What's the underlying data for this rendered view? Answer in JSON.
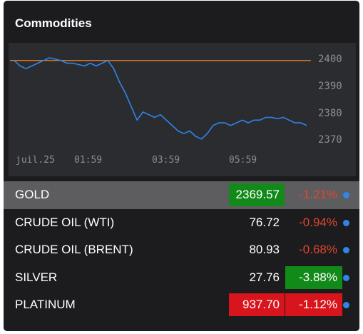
{
  "widget": {
    "title": "Commodities"
  },
  "chart_data": {
    "type": "line",
    "x_tick_labels": [
      "juil.25",
      "01:59",
      "03:59",
      "05:59"
    ],
    "y_tick_labels": [
      "2400",
      "2390",
      "2380",
      "2370"
    ],
    "ylim": [
      2365,
      2404
    ],
    "reference_line": 2398,
    "series": [
      {
        "x": [
          0,
          2,
          4,
          6,
          8,
          10,
          12,
          14,
          16,
          18,
          20,
          22,
          24,
          26,
          28,
          30,
          32,
          34,
          36,
          38,
          40,
          42,
          44,
          46,
          48,
          50,
          52,
          54,
          56,
          58,
          60,
          62,
          64,
          66,
          68,
          70,
          72,
          74,
          76,
          78,
          80,
          82,
          84,
          86,
          88,
          90,
          92,
          94,
          96,
          98,
          100
        ],
        "values": [
          2398,
          2396,
          2395,
          2396,
          2397,
          2398,
          2399,
          2398.5,
          2398,
          2397,
          2397,
          2396.5,
          2396,
          2397,
          2396,
          2397,
          2398,
          2395,
          2390,
          2386,
          2381,
          2376,
          2379,
          2378,
          2377,
          2378,
          2376,
          2374,
          2372,
          2371,
          2372,
          2370,
          2369,
          2371,
          2374,
          2375,
          2375,
          2374,
          2375,
          2376,
          2375,
          2376,
          2376,
          2377,
          2377,
          2376.5,
          2377,
          2376,
          2375,
          2375,
          2374
        ]
      }
    ],
    "colors": {
      "line": "#2f86e8",
      "reference": "#d0762c"
    }
  },
  "commodities": [
    {
      "name": "GOLD",
      "price": "2369.57",
      "change": "-1.21%",
      "price_style": "green",
      "change_style": "plain",
      "selected": true
    },
    {
      "name": "CRUDE OIL (WTI)",
      "price": "76.72",
      "change": "-0.94%",
      "price_style": "plain",
      "change_style": "plain",
      "selected": false
    },
    {
      "name": "CRUDE OIL (BRENT)",
      "price": "80.93",
      "change": "-0.68%",
      "price_style": "plain",
      "change_style": "plain",
      "selected": false
    },
    {
      "name": "SILVER",
      "price": "27.76",
      "change": "-3.88%",
      "price_style": "plain",
      "change_style": "green",
      "selected": false
    },
    {
      "name": "PLATINUM",
      "price": "937.70",
      "change": "-1.12%",
      "price_style": "red",
      "change_style": "red",
      "selected": false
    }
  ]
}
